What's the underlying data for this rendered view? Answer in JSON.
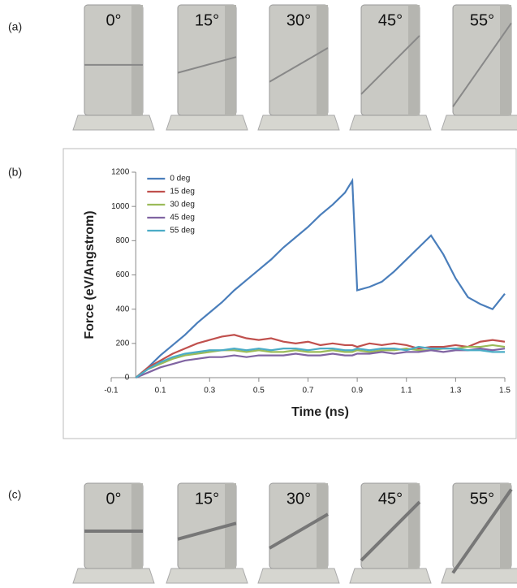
{
  "panels": [
    {
      "label": "(a)",
      "angles": [
        "0°",
        "15°",
        "30°",
        "45°",
        "55°"
      ]
    },
    {
      "label": "(b)"
    },
    {
      "label": "(c)",
      "angles": [
        "0°",
        "15°",
        "30°",
        "45°",
        "55°"
      ]
    }
  ],
  "chart_data": {
    "type": "line",
    "x_label": "Time (ns)",
    "y_label": "Force (eV/Angstrom)",
    "x": [
      0,
      0.05,
      0.1,
      0.15,
      0.2,
      0.25,
      0.3,
      0.35,
      0.4,
      0.45,
      0.5,
      0.55,
      0.6,
      0.65,
      0.7,
      0.75,
      0.8,
      0.85,
      0.88,
      0.9,
      0.95,
      1.0,
      1.05,
      1.1,
      1.15,
      1.2,
      1.25,
      1.3,
      1.35,
      1.4,
      1.45,
      1.5
    ],
    "series": [
      {
        "name": "0 deg",
        "color": "#4a7ebb",
        "values": [
          0,
          60,
          130,
          190,
          250,
          320,
          380,
          440,
          510,
          570,
          630,
          690,
          760,
          820,
          880,
          950,
          1010,
          1080,
          1150,
          510,
          530,
          560,
          620,
          690,
          760,
          830,
          720,
          580,
          470,
          430,
          400,
          490
        ]
      },
      {
        "name": "15 deg",
        "color": "#c0504d",
        "values": [
          0,
          60,
          100,
          140,
          170,
          200,
          220,
          240,
          250,
          230,
          220,
          230,
          210,
          200,
          210,
          190,
          200,
          190,
          190,
          180,
          200,
          190,
          200,
          190,
          170,
          180,
          180,
          190,
          180,
          210,
          220,
          210
        ]
      },
      {
        "name": "30 deg",
        "color": "#9bbb59",
        "values": [
          0,
          50,
          80,
          110,
          130,
          140,
          150,
          160,
          160,
          150,
          160,
          150,
          150,
          160,
          150,
          150,
          160,
          150,
          150,
          160,
          150,
          160,
          160,
          170,
          160,
          160,
          170,
          170,
          180,
          180,
          190,
          180
        ]
      },
      {
        "name": "45 deg",
        "color": "#8064a2",
        "values": [
          0,
          30,
          60,
          80,
          100,
          110,
          120,
          120,
          130,
          120,
          130,
          130,
          130,
          140,
          130,
          130,
          140,
          130,
          130,
          140,
          140,
          150,
          140,
          150,
          150,
          160,
          150,
          160,
          160,
          170,
          160,
          170
        ]
      },
      {
        "name": "55 deg",
        "color": "#4bacc6",
        "values": [
          0,
          50,
          90,
          120,
          140,
          150,
          160,
          160,
          170,
          160,
          170,
          160,
          170,
          170,
          160,
          170,
          170,
          160,
          160,
          170,
          160,
          170,
          170,
          160,
          180,
          170,
          170,
          170,
          160,
          160,
          150,
          150
        ]
      }
    ],
    "xlim": [
      -0.1,
      1.5
    ],
    "xticks": [
      -0.1,
      0.1,
      0.3,
      0.5,
      0.7,
      0.9,
      1.1,
      1.3,
      1.5
    ],
    "ylim": [
      0,
      1200
    ],
    "yticks": [
      0,
      200,
      400,
      600,
      800,
      1000,
      1200
    ],
    "legend": "upper left"
  }
}
